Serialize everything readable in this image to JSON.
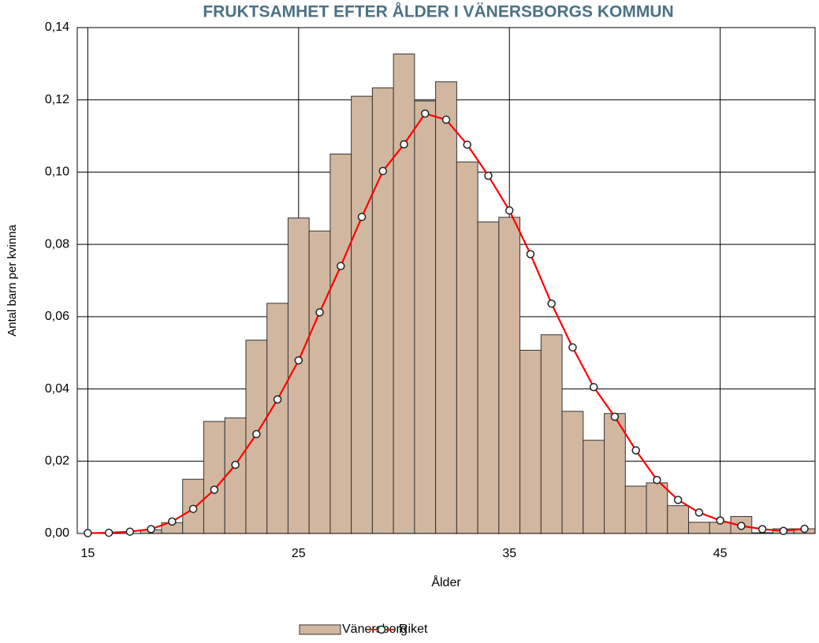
{
  "chart_data": {
    "type": "histogram",
    "title": "FRUKTSAMHET EFTER ÅLDER I VÄNERSBORGS KOMMUN",
    "x_label": "Ålder",
    "y_label": "Antal barn per kvinna",
    "bins": [
      14.5,
      15.5,
      16.5,
      17.5,
      18.5,
      19.5,
      20.5,
      21.5,
      22.5,
      23.5,
      24.5,
      25.5,
      26.5,
      27.5,
      28.5,
      29.5,
      30.5,
      31.5,
      32.5,
      33.5,
      34.5,
      35.5,
      36.5,
      37.5,
      38.5,
      39.5,
      40.5,
      41.5,
      42.5,
      43.5,
      44.5,
      45.5,
      46.5,
      47.5,
      48.5,
      49.5
    ],
    "series": [
      {
        "name": "Vänersborg",
        "color": "#d2b7a0",
        "values": [
          0,
          0,
          0,
          0.001,
          0.003,
          0.015,
          0.031,
          0.032,
          0.0535,
          0.0637,
          0.0873,
          0.0837,
          0.105,
          0.121,
          0.1233,
          0.1327,
          0.1197,
          0.125,
          0.1028,
          0.0862,
          0.0875,
          0.0507,
          0.055,
          0.0338,
          0.0258,
          0.0332,
          0.0131,
          0.014,
          0.0077,
          0.0031,
          0.0031,
          0.0047,
          0.0002,
          0.0013,
          0.0013
        ]
      },
      {
        "name": "Riket",
        "type": "line",
        "color": "#ff0000",
        "x": [
          15,
          16,
          17,
          18,
          19,
          20,
          21,
          22,
          23,
          24,
          25,
          26,
          27,
          28,
          29,
          30,
          31,
          32,
          33,
          34,
          35,
          36,
          37,
          38,
          39,
          40,
          41,
          42,
          43,
          44,
          45,
          46,
          47,
          48,
          49
        ],
        "values": [
          0.0001,
          0.0002,
          0.0005,
          0.0012,
          0.0033,
          0.0068,
          0.0121,
          0.019,
          0.0275,
          0.0371,
          0.0479,
          0.0612,
          0.074,
          0.0876,
          0.1003,
          0.1077,
          0.1162,
          0.1145,
          0.1076,
          0.099,
          0.0894,
          0.0773,
          0.0636,
          0.0515,
          0.0405,
          0.0323,
          0.023,
          0.0148,
          0.0093,
          0.0058,
          0.0036,
          0.0021,
          0.0012,
          0.0007,
          0.0013
        ]
      }
    ],
    "xlim": [
      14.5,
      49.5
    ],
    "xticks": [
      15,
      25,
      35,
      45
    ],
    "ylim": [
      0,
      0.14
    ],
    "yticks": [
      {
        "value": 0,
        "label": "0,00"
      },
      {
        "value": 0.02,
        "label": "0,02"
      },
      {
        "value": 0.04,
        "label": "0,04"
      },
      {
        "value": 0.06,
        "label": "0,06"
      },
      {
        "value": 0.08,
        "label": "0,08"
      },
      {
        "value": 0.1,
        "label": "0,10"
      },
      {
        "value": 0.12,
        "label": "0,12"
      },
      {
        "value": 0.14,
        "label": "0,14"
      }
    ],
    "grid": true,
    "legend": "bottom"
  }
}
